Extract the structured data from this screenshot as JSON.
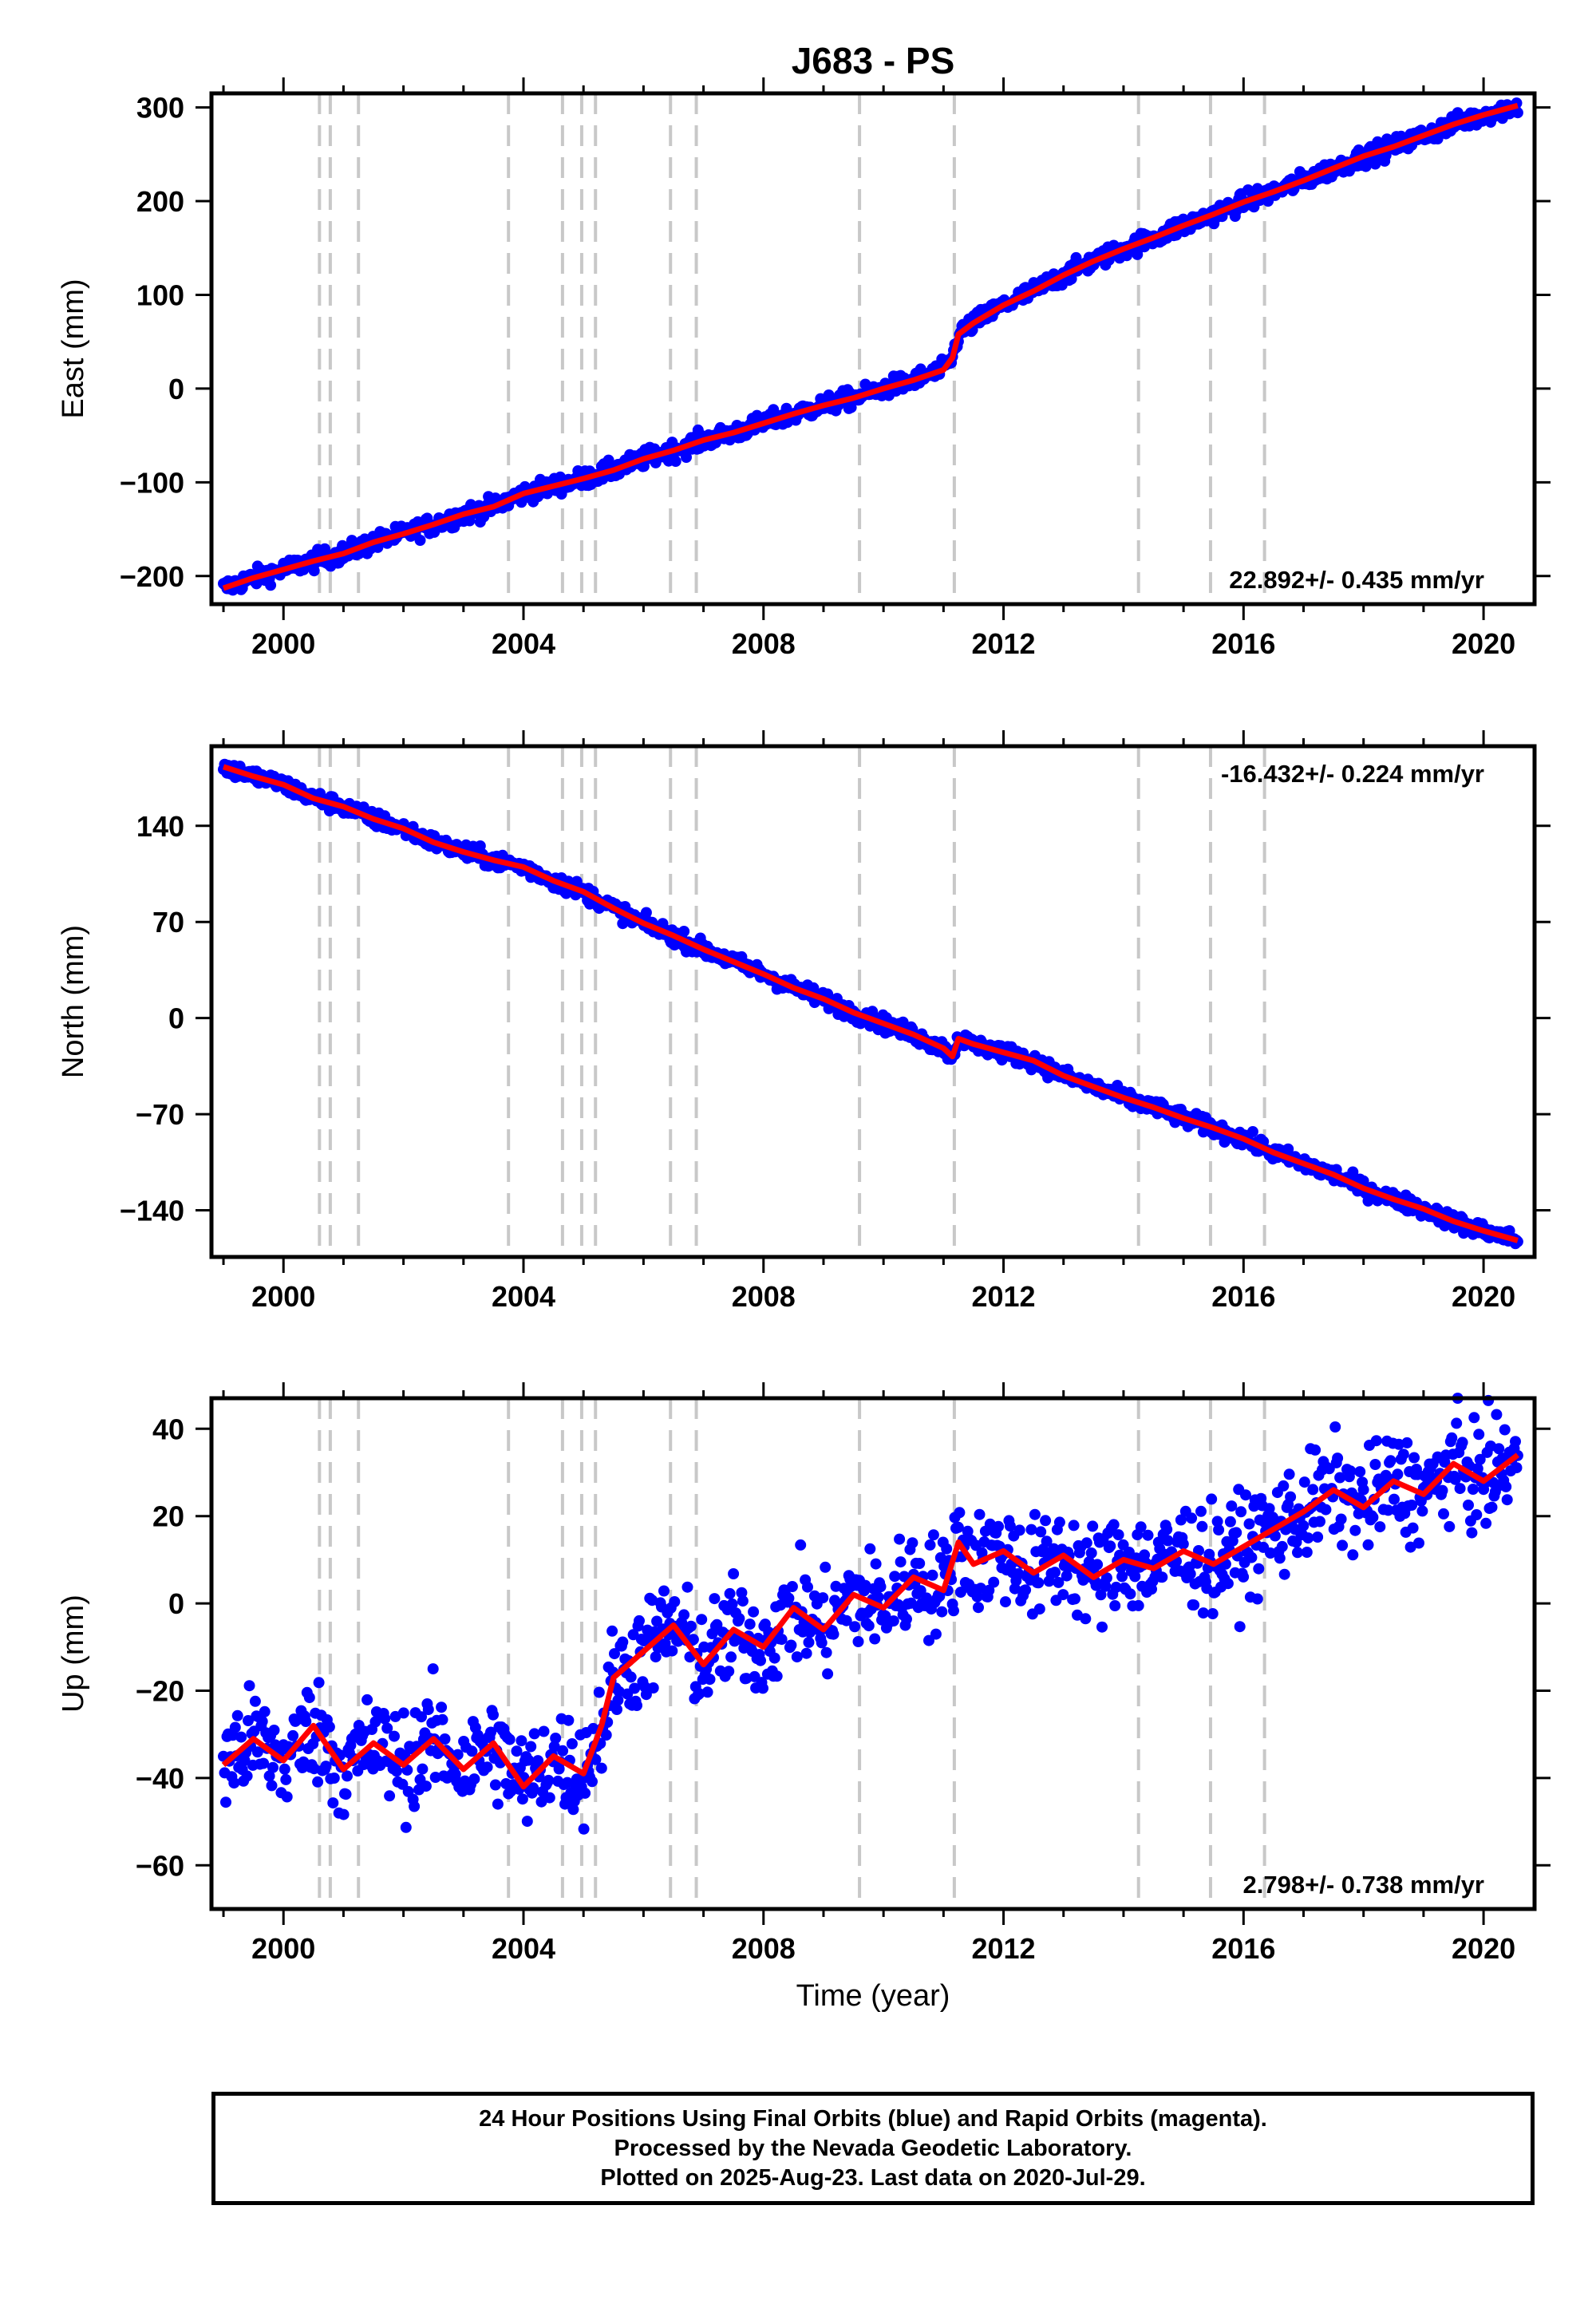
{
  "figure": {
    "title": "J683 - PS",
    "xlabel": "Time (year)"
  },
  "colors": {
    "data_points": "#0000ff",
    "model_line": "#ff0000",
    "event_lines": "#c8c8c8",
    "frame": "#000000"
  },
  "footer": {
    "line1": "24 Hour Positions Using Final Orbits (blue) and Rapid Orbits (magenta).",
    "line2": "Processed by the Nevada Geodetic Laboratory.",
    "line3": "Plotted on 2025-Aug-23. Last data on 2020-Jul-29."
  },
  "chart_data": [
    {
      "type": "scatter",
      "component": "east",
      "ylabel": "East (mm)",
      "rate_label": "22.892+/- 0.435 mm/yr",
      "rate_label_position": "bottom-right",
      "xlim": [
        1998.8,
        2020.85
      ],
      "ylim": [
        -230,
        315
      ],
      "xticks": [
        2000,
        2004,
        2008,
        2012,
        2016,
        2020
      ],
      "yticks": [
        -200,
        -100,
        0,
        100,
        200,
        300
      ],
      "event_lines_x": [
        2000.6,
        2000.78,
        2001.25,
        2003.75,
        2004.65,
        2004.97,
        2005.2,
        2006.45,
        2006.88,
        2009.6,
        2011.18,
        2014.25,
        2015.45,
        2016.35
      ],
      "series": [
        {
          "role": "daily positions",
          "x": [
            1999.0,
            1999.5,
            2000.0,
            2000.5,
            2001.0,
            2001.5,
            2002.0,
            2002.5,
            2003.0,
            2003.5,
            2004.0,
            2004.5,
            2005.0,
            2005.5,
            2006.0,
            2006.5,
            2007.0,
            2007.5,
            2008.0,
            2008.5,
            2009.0,
            2009.5,
            2010.0,
            2010.5,
            2011.0,
            2011.15,
            2011.25,
            2011.5,
            2012.0,
            2012.5,
            2013.0,
            2013.5,
            2014.0,
            2014.5,
            2015.0,
            2015.5,
            2016.0,
            2016.5,
            2017.0,
            2017.5,
            2018.0,
            2018.5,
            2019.0,
            2019.5,
            2020.0,
            2020.57
          ],
          "y": [
            -213,
            -202,
            -193,
            -184,
            -176,
            -164,
            -155,
            -145,
            -134,
            -126,
            -112,
            -104,
            -96,
            -87,
            -75,
            -66,
            -55,
            -47,
            -37,
            -27,
            -18,
            -10,
            0,
            9,
            20,
            33,
            58,
            70,
            89,
            104,
            121,
            136,
            149,
            161,
            174,
            186,
            199,
            210,
            222,
            235,
            248,
            258,
            270,
            282,
            292,
            302
          ],
          "scatter_mm": 5
        },
        {
          "role": "model fit",
          "x": [
            1999.0,
            1999.5,
            2000.0,
            2000.5,
            2001.0,
            2001.5,
            2002.0,
            2002.5,
            2003.0,
            2003.5,
            2004.0,
            2004.5,
            2005.0,
            2005.5,
            2006.0,
            2006.5,
            2007.0,
            2007.5,
            2008.0,
            2008.5,
            2009.0,
            2009.5,
            2010.0,
            2010.5,
            2011.0,
            2011.15,
            2011.25,
            2011.5,
            2012.0,
            2012.5,
            2013.0,
            2013.5,
            2014.0,
            2014.5,
            2015.0,
            2015.5,
            2016.0,
            2016.5,
            2017.0,
            2017.5,
            2018.0,
            2018.5,
            2019.0,
            2019.5,
            2020.0,
            2020.57
          ],
          "y": [
            -213,
            -202,
            -193,
            -184,
            -176,
            -164,
            -155,
            -145,
            -134,
            -126,
            -112,
            -104,
            -96,
            -87,
            -75,
            -66,
            -55,
            -47,
            -37,
            -27,
            -18,
            -10,
            0,
            9,
            20,
            33,
            58,
            70,
            89,
            104,
            121,
            136,
            149,
            161,
            174,
            186,
            199,
            210,
            222,
            235,
            248,
            258,
            270,
            282,
            292,
            302
          ]
        }
      ]
    },
    {
      "type": "scatter",
      "component": "north",
      "ylabel": "North (mm)",
      "rate_label": "-16.432+/- 0.224 mm/yr",
      "rate_label_position": "top-right",
      "xlim": [
        1998.8,
        2020.85
      ],
      "ylim": [
        -174,
        198
      ],
      "xticks": [
        2000,
        2004,
        2008,
        2012,
        2016,
        2020
      ],
      "yticks": [
        -140,
        -70,
        0,
        70,
        140
      ],
      "event_lines_x": [
        2000.6,
        2000.78,
        2001.25,
        2003.75,
        2004.65,
        2004.97,
        2005.2,
        2006.45,
        2006.88,
        2009.6,
        2011.18,
        2014.25,
        2015.45,
        2016.35
      ],
      "series": [
        {
          "role": "daily positions",
          "x": [
            1999.0,
            1999.5,
            2000.0,
            2000.5,
            2001.0,
            2001.5,
            2002.0,
            2002.5,
            2003.0,
            2003.5,
            2004.0,
            2004.5,
            2005.0,
            2005.5,
            2006.0,
            2006.5,
            2007.0,
            2007.5,
            2008.0,
            2008.5,
            2009.0,
            2009.5,
            2010.0,
            2010.5,
            2011.0,
            2011.15,
            2011.25,
            2011.5,
            2012.0,
            2012.5,
            2013.0,
            2013.5,
            2014.0,
            2014.5,
            2015.0,
            2015.5,
            2016.0,
            2016.5,
            2017.0,
            2017.5,
            2018.0,
            2018.5,
            2019.0,
            2019.5,
            2020.0,
            2020.57
          ],
          "y": [
            183,
            176,
            170,
            160,
            154,
            145,
            138,
            128,
            121,
            115,
            110,
            100,
            92,
            80,
            69,
            60,
            50,
            41,
            32,
            22,
            14,
            4,
            -4,
            -12,
            -22,
            -28,
            -15,
            -19,
            -25,
            -31,
            -42,
            -50,
            -58,
            -65,
            -73,
            -80,
            -88,
            -98,
            -106,
            -114,
            -124,
            -132,
            -139,
            -148,
            -155,
            -162
          ],
          "scatter_mm": 3
        },
        {
          "role": "model fit",
          "x": [
            1999.0,
            1999.5,
            2000.0,
            2000.5,
            2001.0,
            2001.5,
            2002.0,
            2002.5,
            2003.0,
            2003.5,
            2004.0,
            2004.5,
            2005.0,
            2005.5,
            2006.0,
            2006.5,
            2007.0,
            2007.5,
            2008.0,
            2008.5,
            2009.0,
            2009.5,
            2010.0,
            2010.5,
            2011.0,
            2011.15,
            2011.25,
            2011.5,
            2012.0,
            2012.5,
            2013.0,
            2013.5,
            2014.0,
            2014.5,
            2015.0,
            2015.5,
            2016.0,
            2016.5,
            2017.0,
            2017.5,
            2018.0,
            2018.5,
            2019.0,
            2019.5,
            2020.0,
            2020.57
          ],
          "y": [
            183,
            176,
            170,
            160,
            154,
            145,
            138,
            128,
            121,
            115,
            110,
            100,
            92,
            80,
            69,
            60,
            50,
            41,
            32,
            22,
            14,
            4,
            -4,
            -12,
            -22,
            -28,
            -15,
            -19,
            -25,
            -31,
            -42,
            -50,
            -58,
            -65,
            -73,
            -80,
            -88,
            -98,
            -106,
            -114,
            -124,
            -132,
            -139,
            -148,
            -155,
            -162
          ]
        }
      ]
    },
    {
      "type": "scatter",
      "component": "up",
      "ylabel": "Up (mm)",
      "rate_label": "2.798+/- 0.738 mm/yr",
      "rate_label_position": "bottom-right",
      "xlim": [
        1998.8,
        2020.85
      ],
      "ylim": [
        -70,
        47
      ],
      "xticks": [
        2000,
        2004,
        2008,
        2012,
        2016,
        2020
      ],
      "yticks": [
        -60,
        -40,
        -20,
        0,
        20,
        40
      ],
      "event_lines_x": [
        2000.6,
        2000.78,
        2001.25,
        2003.75,
        2004.65,
        2004.97,
        2005.2,
        2006.45,
        2006.88,
        2009.6,
        2011.18,
        2014.25,
        2015.45,
        2016.35
      ],
      "series": [
        {
          "role": "daily positions",
          "x": [
            1999.0,
            1999.5,
            2000.0,
            2000.5,
            2001.0,
            2001.5,
            2002.0,
            2002.5,
            2003.0,
            2003.5,
            2004.0,
            2004.5,
            2005.0,
            2005.3,
            2005.5,
            2006.0,
            2006.5,
            2007.0,
            2007.5,
            2008.0,
            2008.5,
            2009.0,
            2009.5,
            2010.0,
            2010.5,
            2011.0,
            2011.25,
            2011.5,
            2012.0,
            2012.5,
            2013.0,
            2013.5,
            2014.0,
            2014.5,
            2015.0,
            2015.5,
            2016.0,
            2016.5,
            2017.0,
            2017.5,
            2018.0,
            2018.5,
            2019.0,
            2019.5,
            2020.0,
            2020.57
          ],
          "y": [
            -37,
            -31,
            -36,
            -28,
            -38,
            -32,
            -37,
            -31,
            -38,
            -32,
            -42,
            -35,
            -39,
            -28,
            -17,
            -11,
            -5,
            -14,
            -6,
            -10,
            -1,
            -6,
            2,
            -1,
            6,
            3,
            14,
            9,
            12,
            7,
            11,
            6,
            10,
            8,
            12,
            9,
            13,
            17,
            21,
            26,
            22,
            28,
            25,
            32,
            28,
            34
          ],
          "scatter_mm": 6
        },
        {
          "role": "model fit",
          "x": [
            1999.0,
            1999.5,
            2000.0,
            2000.5,
            2001.0,
            2001.5,
            2002.0,
            2002.5,
            2003.0,
            2003.5,
            2004.0,
            2004.5,
            2005.0,
            2005.3,
            2005.5,
            2006.0,
            2006.5,
            2007.0,
            2007.5,
            2008.0,
            2008.5,
            2009.0,
            2009.5,
            2010.0,
            2010.5,
            2011.0,
            2011.25,
            2011.5,
            2012.0,
            2012.5,
            2013.0,
            2013.5,
            2014.0,
            2014.5,
            2015.0,
            2015.5,
            2016.0,
            2016.5,
            2017.0,
            2017.5,
            2018.0,
            2018.5,
            2019.0,
            2019.5,
            2020.0,
            2020.57
          ],
          "y": [
            -37,
            -31,
            -36,
            -28,
            -38,
            -32,
            -37,
            -31,
            -38,
            -32,
            -42,
            -35,
            -39,
            -28,
            -17,
            -11,
            -5,
            -14,
            -6,
            -10,
            -1,
            -6,
            2,
            -1,
            6,
            3,
            14,
            9,
            12,
            7,
            11,
            6,
            10,
            8,
            12,
            9,
            13,
            17,
            21,
            26,
            22,
            28,
            25,
            32,
            28,
            34
          ]
        }
      ]
    }
  ]
}
